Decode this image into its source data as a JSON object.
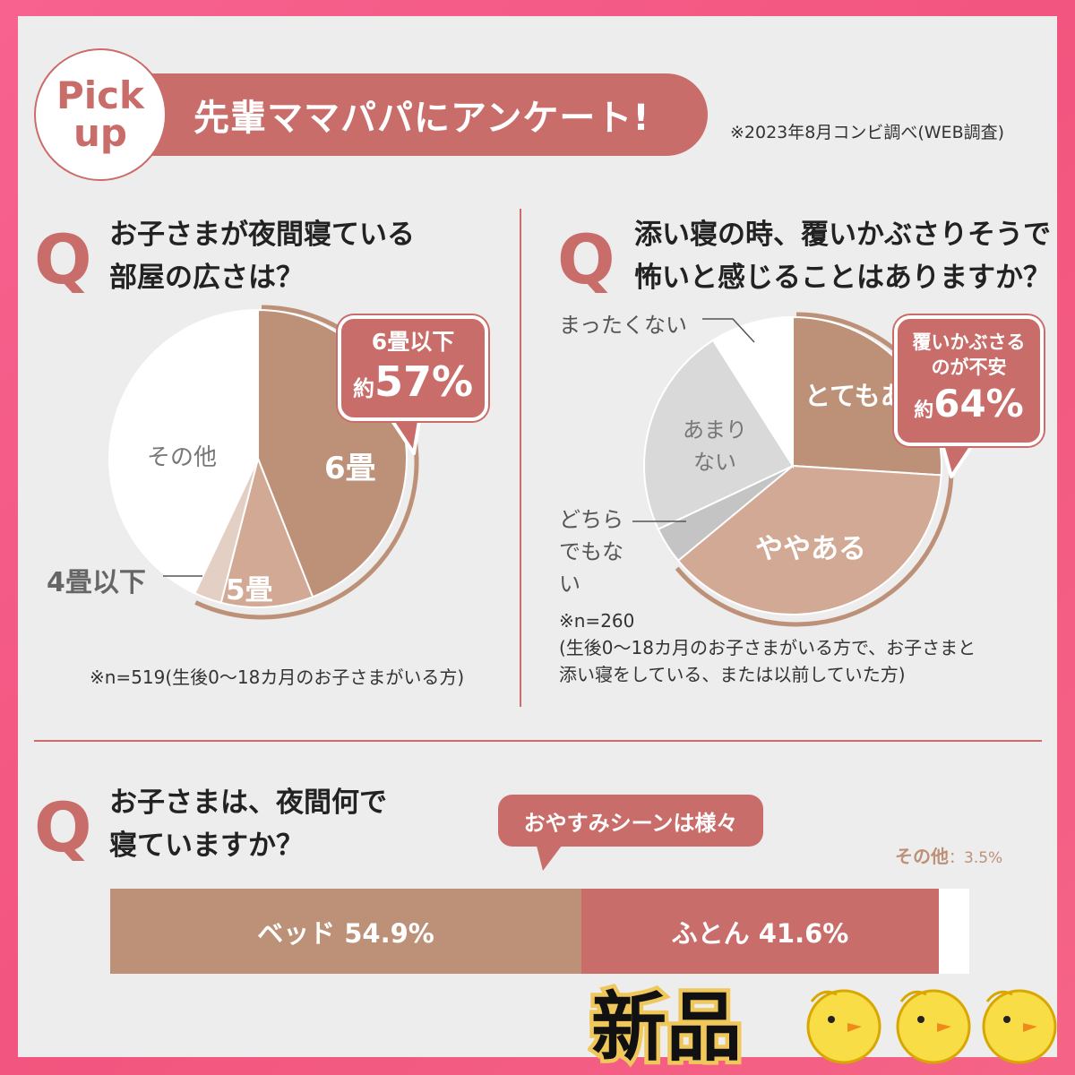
{
  "header": {
    "badge_line1": "Pick",
    "badge_line2": "up",
    "title": "先輩ママパパにアンケート!",
    "survey_note": "※2023年8月コンビ調べ(WEB調査)"
  },
  "q_mark": "Q",
  "q1": {
    "question_line1": "お子さまが夜間寝ている",
    "question_line2": "部屋の広さは？",
    "callout_line1": "6畳以下",
    "callout_prefix": "約",
    "callout_value": "57%",
    "note": "※n=519(生後0〜18カ月のお子さまがいる方)"
  },
  "q2": {
    "question_line1": "添い寝の時、覆いかぶさりそうで",
    "question_line2": "怖いと感じることはありますか？",
    "callout_line1": "覆いかぶさる",
    "callout_line2": "のが不安",
    "callout_prefix": "約",
    "callout_value": "64%",
    "note_line1": "※n=260",
    "note_line2": "(生後0〜18カ月のお子さまがいる方で、お子さまと",
    "note_line3": "添い寝をしている、または以前していた方)"
  },
  "q3": {
    "question_line1": "お子さまは、夜間何で",
    "question_line2": "寝ていますか？",
    "callout": "おやすみシーンは様々",
    "other_label": "その他",
    "other_value": "：3.5%"
  },
  "stamp": {
    "text": "新品"
  },
  "colors": {
    "brown": "#bd9178",
    "brown_light": "#d2a994",
    "brown_pale": "#e3cfc3",
    "rose": "#c96d6a",
    "grey": "#d9d9d9",
    "grey_dark": "#c4c4c4",
    "white": "#ffffff"
  },
  "chart_data": [
    {
      "type": "pie",
      "title": "お子さまが夜間寝ている部屋の広さは？",
      "slices": [
        {
          "label": "6畳",
          "value": 44
        },
        {
          "label": "5畳",
          "value": 10
        },
        {
          "label": "4畳以下",
          "value": 3
        },
        {
          "label": "その他",
          "value": 43
        }
      ],
      "highlight": {
        "label": "6畳以下",
        "value": 57,
        "unit": "%"
      },
      "n": 519
    },
    {
      "type": "pie",
      "title": "添い寝の時、覆いかぶさりそうで怖いと感じることはありますか？",
      "slices": [
        {
          "label": "とてもある",
          "value": 26
        },
        {
          "label": "ややある",
          "value": 38
        },
        {
          "label": "どちらでもない",
          "value": 4
        },
        {
          "label": "あまりない",
          "value": 23
        },
        {
          "label": "まったくない",
          "value": 9
        }
      ],
      "highlight": {
        "label": "覆いかぶさるのが不安",
        "value": 64,
        "unit": "%"
      },
      "n": 260
    },
    {
      "type": "bar",
      "orientation": "horizontal-stacked",
      "title": "お子さまは、夜間何で寝ていますか？",
      "series": [
        {
          "name": "ベッド",
          "value": 54.9,
          "display": "ベッド 54.9%"
        },
        {
          "name": "ふとん",
          "value": 41.6,
          "display": "ふとん 41.6%"
        },
        {
          "name": "その他",
          "value": 3.5,
          "display": "その他：3.5%"
        }
      ],
      "unit": "%"
    }
  ]
}
